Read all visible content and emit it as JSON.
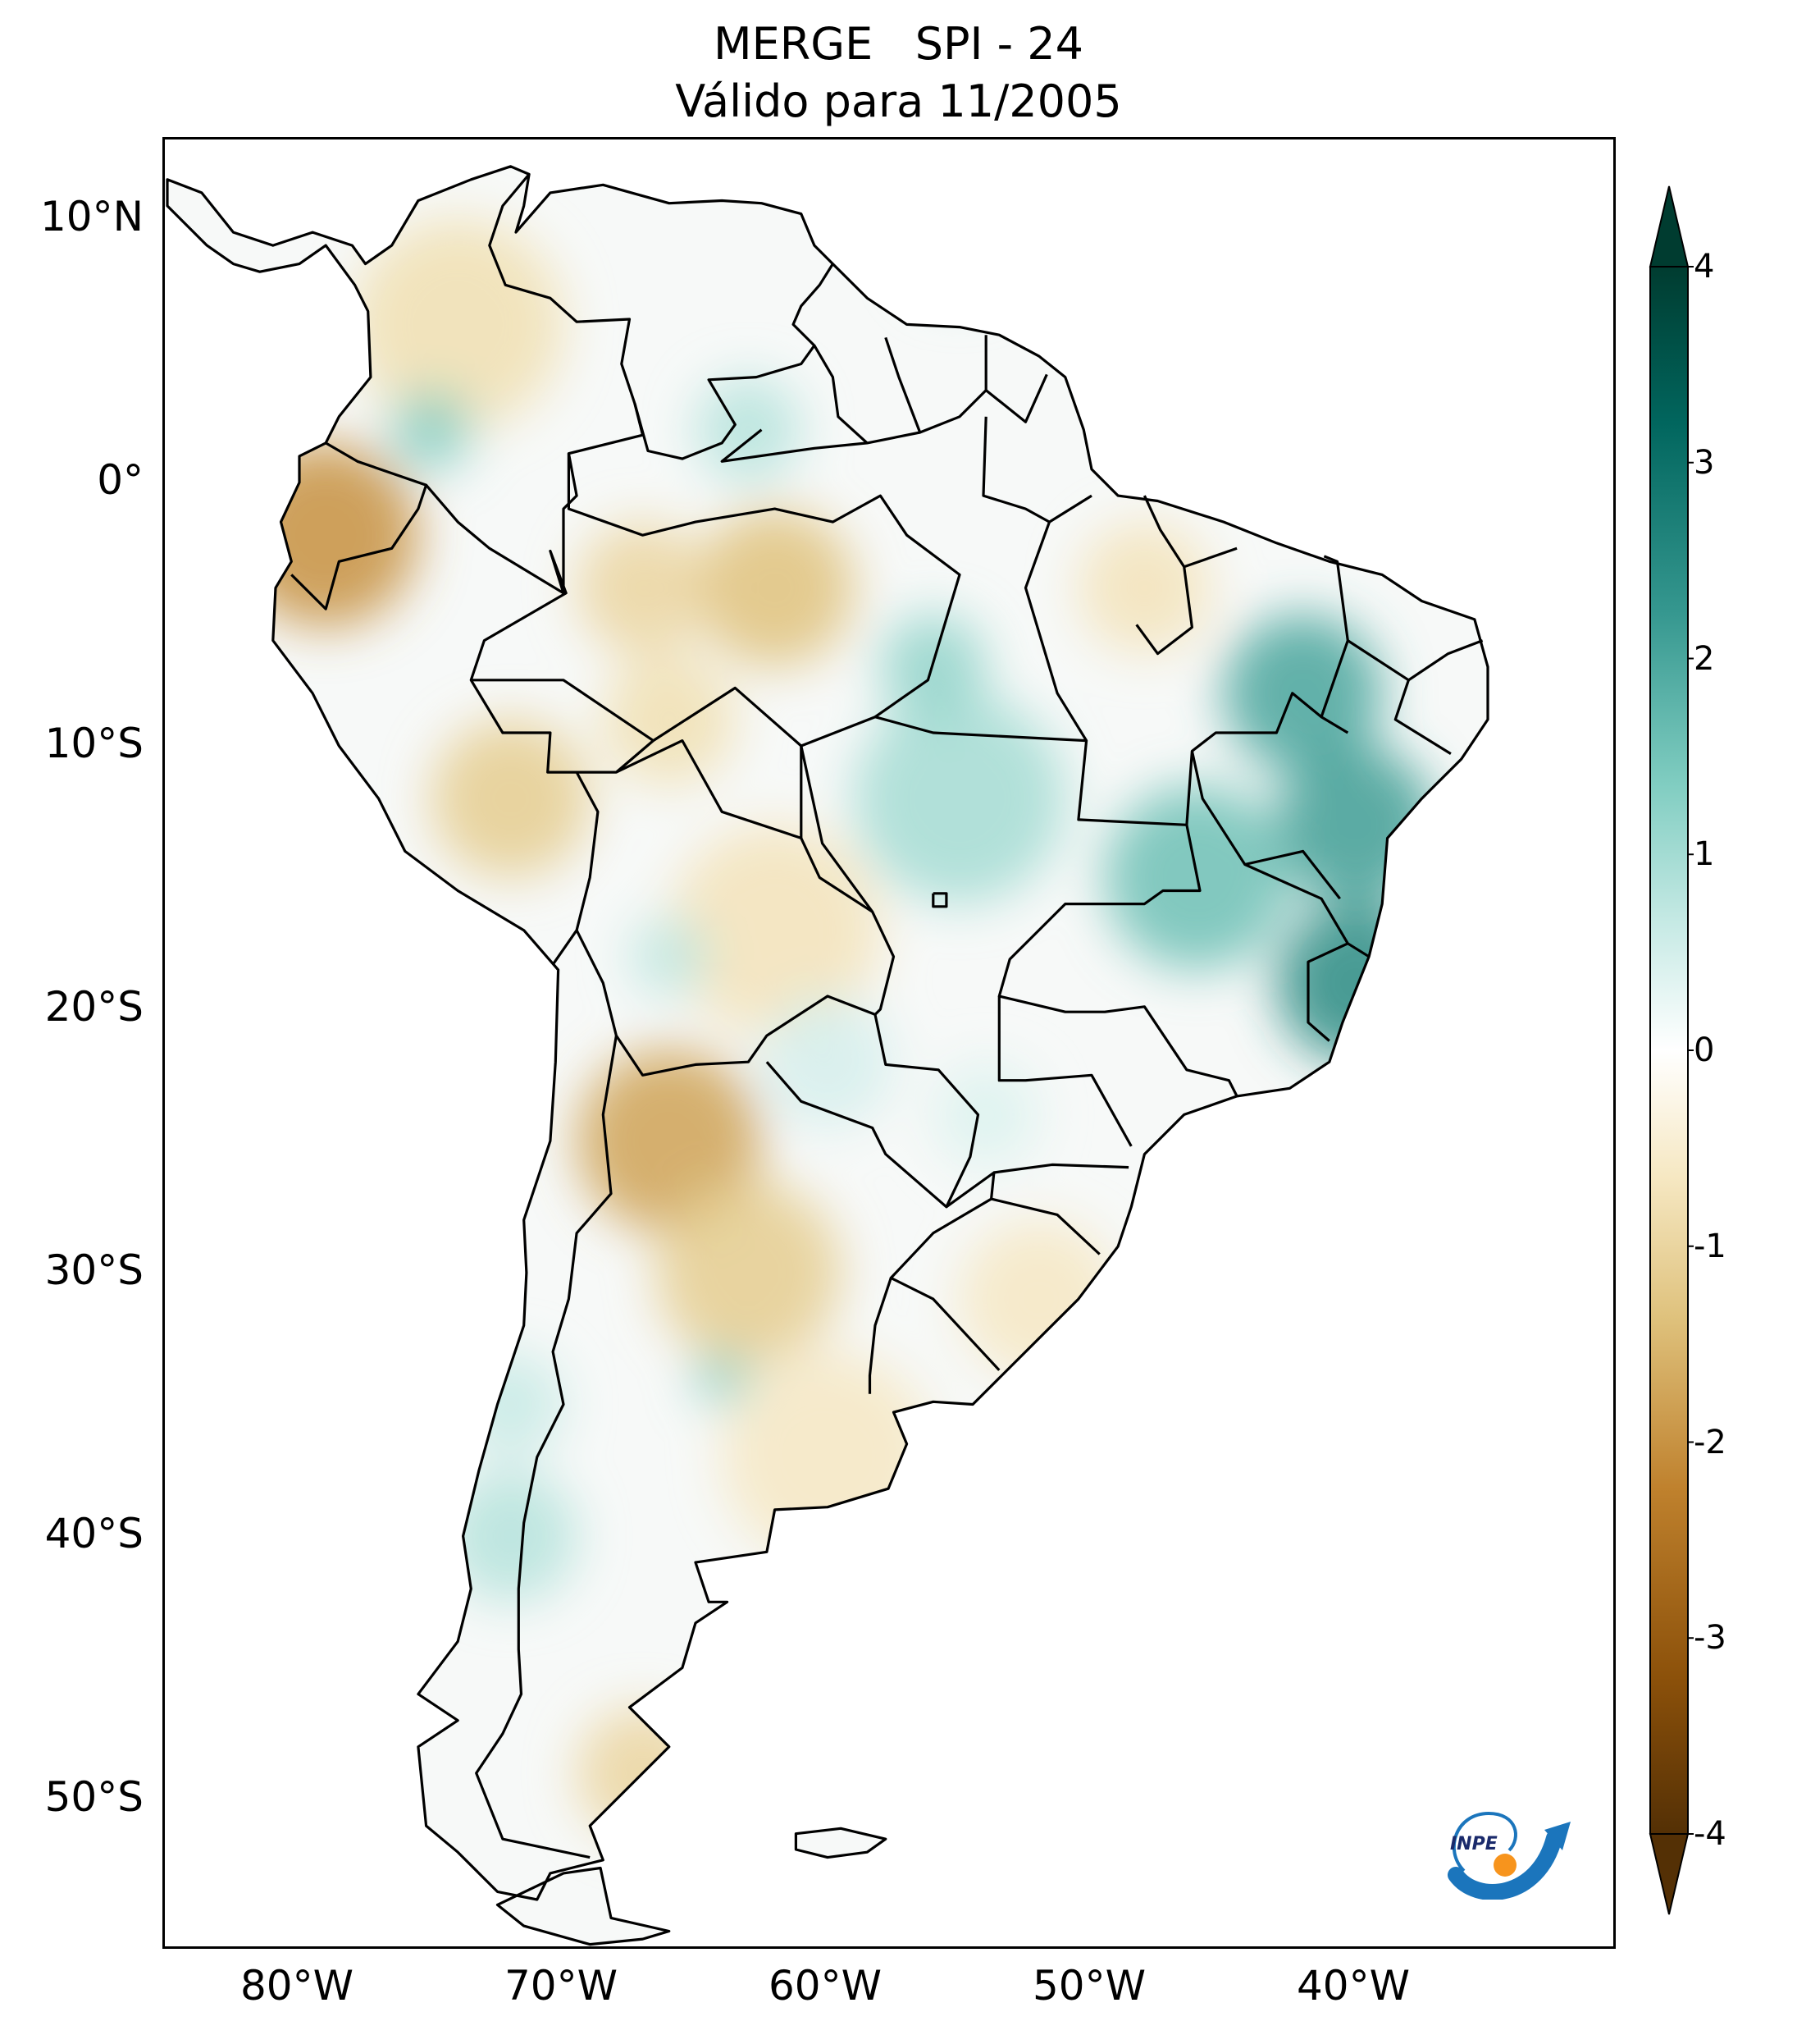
{
  "title": {
    "line1": "MERGE   SPI - 24",
    "line2": "Válido para 11/2005"
  },
  "map": {
    "projection": "PlateCarree",
    "extent": {
      "lon_min": -85,
      "lon_max": -30,
      "lat_min": -56,
      "lat_max": 13
    },
    "lat_ticks": [
      {
        "value": 10,
        "label": "10°N"
      },
      {
        "value": 0,
        "label": "0°"
      },
      {
        "value": -10,
        "label": "10°S"
      },
      {
        "value": -20,
        "label": "20°S"
      },
      {
        "value": -30,
        "label": "30°S"
      },
      {
        "value": -40,
        "label": "40°S"
      },
      {
        "value": -50,
        "label": "50°S"
      }
    ],
    "lon_ticks": [
      {
        "value": -80,
        "label": "80°W"
      },
      {
        "value": -70,
        "label": "70°W"
      },
      {
        "value": -60,
        "label": "60°W"
      },
      {
        "value": -50,
        "label": "50°W"
      },
      {
        "value": -40,
        "label": "40°W"
      }
    ]
  },
  "colorbar": {
    "min": -4,
    "max": 4,
    "extend": "both",
    "ticks": [
      {
        "value": 4,
        "label": "4"
      },
      {
        "value": 3,
        "label": "3"
      },
      {
        "value": 2,
        "label": "2"
      },
      {
        "value": 1,
        "label": "1"
      },
      {
        "value": 0,
        "label": "0"
      },
      {
        "value": -1,
        "label": "-1"
      },
      {
        "value": -2,
        "label": "-2"
      },
      {
        "value": -3,
        "label": "-3"
      },
      {
        "value": -4,
        "label": "-4"
      }
    ],
    "colors": [
      "#543005",
      "#8c510a",
      "#bf812d",
      "#dfc27d",
      "#f6e8c3",
      "#ffffff",
      "#c7eae5",
      "#80cdc1",
      "#35978f",
      "#01665e",
      "#003c30"
    ]
  },
  "logo": {
    "text": "INPE",
    "arrow_color": "#1b75bc",
    "dot_color": "#f7941d"
  }
}
